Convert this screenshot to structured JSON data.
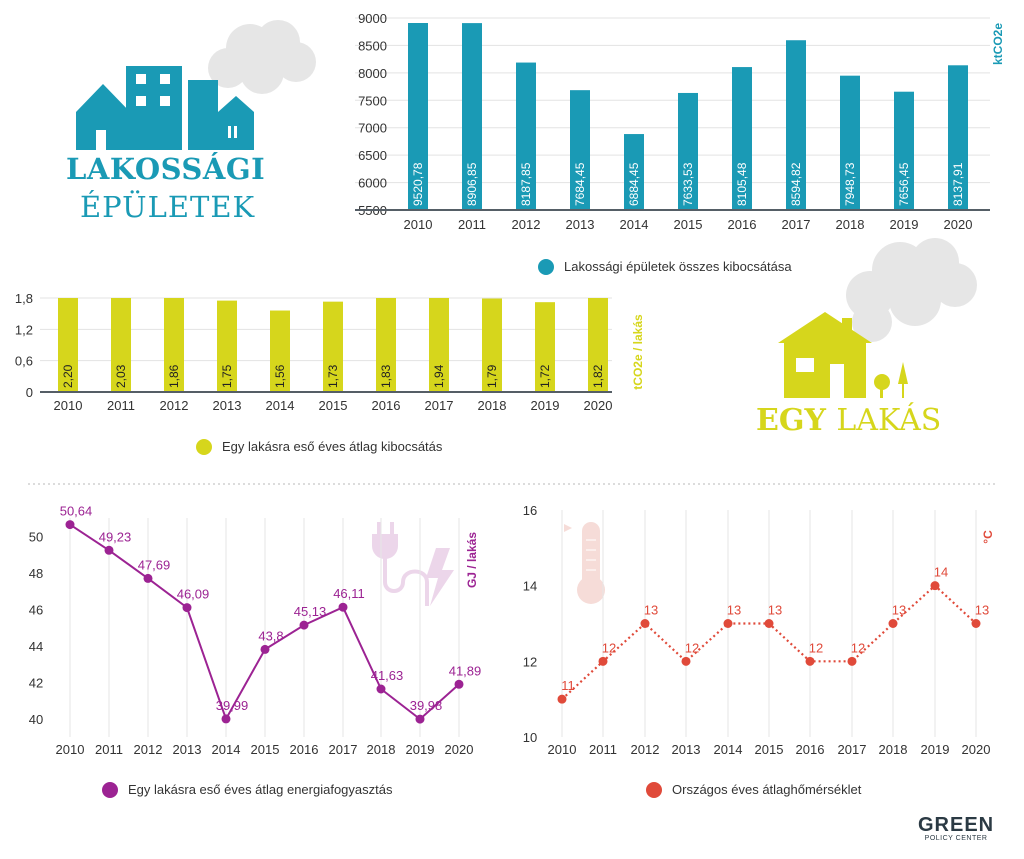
{
  "headings": {
    "residential_line1": "LAKOSSÁGI",
    "residential_line2": "ÉPÜLETEK",
    "dwelling_bold": "EGY",
    "dwelling_regular": "LAKÁS"
  },
  "logo": {
    "text": "GREEN",
    "subtext": "POLICY CENTER"
  },
  "colors": {
    "teal": "#1a9ab5",
    "yellow": "#d6d61c",
    "purple": "#9c2393",
    "red": "#e04a3a",
    "grey_cloud": "#e6e6e6",
    "grid": "#d9d9d9"
  },
  "chart_data": [
    {
      "type": "bar",
      "categories": [
        "2010",
        "2011",
        "2012",
        "2013",
        "2014",
        "2015",
        "2016",
        "2017",
        "2018",
        "2019",
        "2020"
      ],
      "values": [
        9520.78,
        8906.85,
        8187.85,
        7684.45,
        6884.45,
        7633.53,
        8105.48,
        8594.82,
        7948.73,
        7656.45,
        8137.91
      ],
      "value_labels": [
        "9520,78",
        "8906,85",
        "8187,85",
        "7684,45",
        "6884,45",
        "7633,53",
        "8105,48",
        "8594,82",
        "7948,73",
        "7656,45",
        "8137,91"
      ],
      "yticks": [
        "5500",
        "6000",
        "6500",
        "7000",
        "7500",
        "8000",
        "8500",
        "9000"
      ],
      "ylim": [
        5500,
        9000
      ],
      "ylabel": "ktCO2e",
      "legend": [
        "Lakossági épületek összes kibocsátása"
      ],
      "color": "#1a9ab5"
    },
    {
      "type": "bar",
      "categories": [
        "2010",
        "2011",
        "2012",
        "2013",
        "2014",
        "2015",
        "2016",
        "2017",
        "2018",
        "2019",
        "2020"
      ],
      "values": [
        2.2,
        2.03,
        1.86,
        1.75,
        1.56,
        1.73,
        1.83,
        1.94,
        1.79,
        1.72,
        1.82
      ],
      "value_labels": [
        "2,20",
        "2,03",
        "1,86",
        "1,75",
        "1,56",
        "1,73",
        "1,83",
        "1,94",
        "1,79",
        "1,72",
        "1,82"
      ],
      "yticks": [
        "0",
        "0,6",
        "1,2",
        "1,8"
      ],
      "ylim": [
        0,
        1.8
      ],
      "ylabel": "tCO2e / lakás",
      "legend": [
        "Egy lakásra eső éves átlag kibocsátás"
      ],
      "color": "#d6d61c"
    },
    {
      "type": "line",
      "categories": [
        "2010",
        "2011",
        "2012",
        "2013",
        "2014",
        "2015",
        "2016",
        "2017",
        "2018",
        "2019",
        "2020"
      ],
      "values": [
        50.64,
        49.23,
        47.69,
        46.09,
        39.99,
        43.8,
        45.13,
        46.11,
        41.63,
        39.98,
        41.89
      ],
      "value_labels": [
        "50,64",
        "49,23",
        "47,69",
        "46,09",
        "39,99",
        "43,8",
        "45,13",
        "46,11",
        "41,63",
        "39,98",
        "41,89"
      ],
      "yticks": [
        "40",
        "42",
        "44",
        "46",
        "48",
        "50"
      ],
      "ylim": [
        39,
        51
      ],
      "ylabel": "GJ / lakás",
      "legend": [
        "Egy lakásra eső éves átlag energiafogyasztás"
      ],
      "color": "#9c2393"
    },
    {
      "type": "line",
      "categories": [
        "2010",
        "2011",
        "2012",
        "2013",
        "2014",
        "2015",
        "2016",
        "2017",
        "2018",
        "2019",
        "2020"
      ],
      "values": [
        11,
        12,
        13,
        12,
        13,
        13,
        12,
        12,
        13,
        14,
        13
      ],
      "value_labels": [
        "11",
        "12",
        "13",
        "12",
        "13",
        "13",
        "12",
        "12",
        "13",
        "14",
        "13"
      ],
      "yticks": [
        "10",
        "12",
        "14",
        "16"
      ],
      "ylim": [
        10,
        16
      ],
      "ylabel": "°C",
      "legend": [
        "Országos éves átlaghőmérséklet"
      ],
      "color": "#e04a3a"
    }
  ]
}
